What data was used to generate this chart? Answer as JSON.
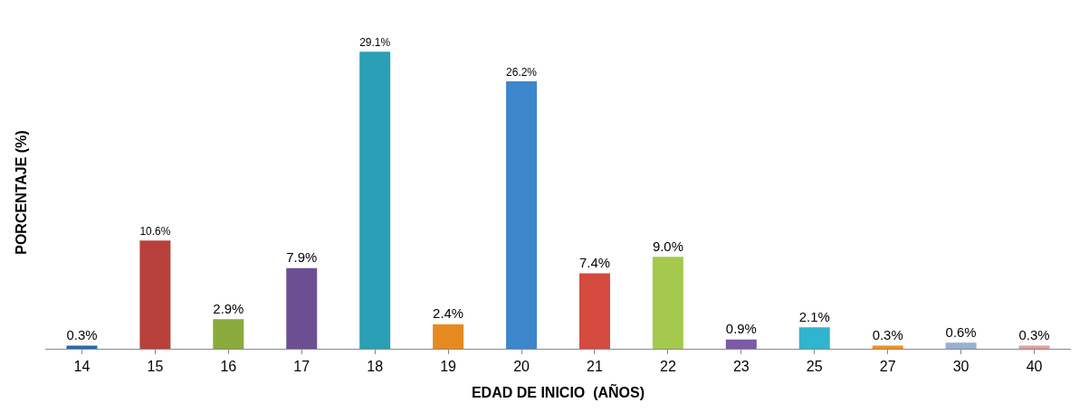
{
  "chart_data": {
    "type": "bar",
    "xlabel": "EDAD DE INICIO  (AÑOS)",
    "ylabel": "PORCENTAJE (%)",
    "categories": [
      "14",
      "15",
      "16",
      "17",
      "18",
      "19",
      "20",
      "21",
      "22",
      "23",
      "25",
      "27",
      "30",
      "40"
    ],
    "values": [
      0.3,
      10.6,
      2.9,
      7.9,
      29.1,
      2.4,
      26.2,
      7.4,
      9.0,
      0.9,
      2.1,
      0.3,
      0.6,
      0.3
    ],
    "value_labels": [
      "0.3%",
      "10.6%",
      "2.9%",
      "7.9%",
      "29.1%",
      "2.4%",
      "26.2%",
      "7.4%",
      "9.0%",
      "0.9%",
      "2.1%",
      "0.3%",
      "0.6%",
      "0.3%"
    ],
    "colors": [
      "#2e6aad",
      "#b8403a",
      "#8aab3c",
      "#6c4f93",
      "#2b9fb5",
      "#e68a1f",
      "#3d86cc",
      "#d44a3f",
      "#a5c94d",
      "#7b5aa6",
      "#30b4d0",
      "#f09020",
      "#9aaed0",
      "#e0a0a0"
    ]
  }
}
